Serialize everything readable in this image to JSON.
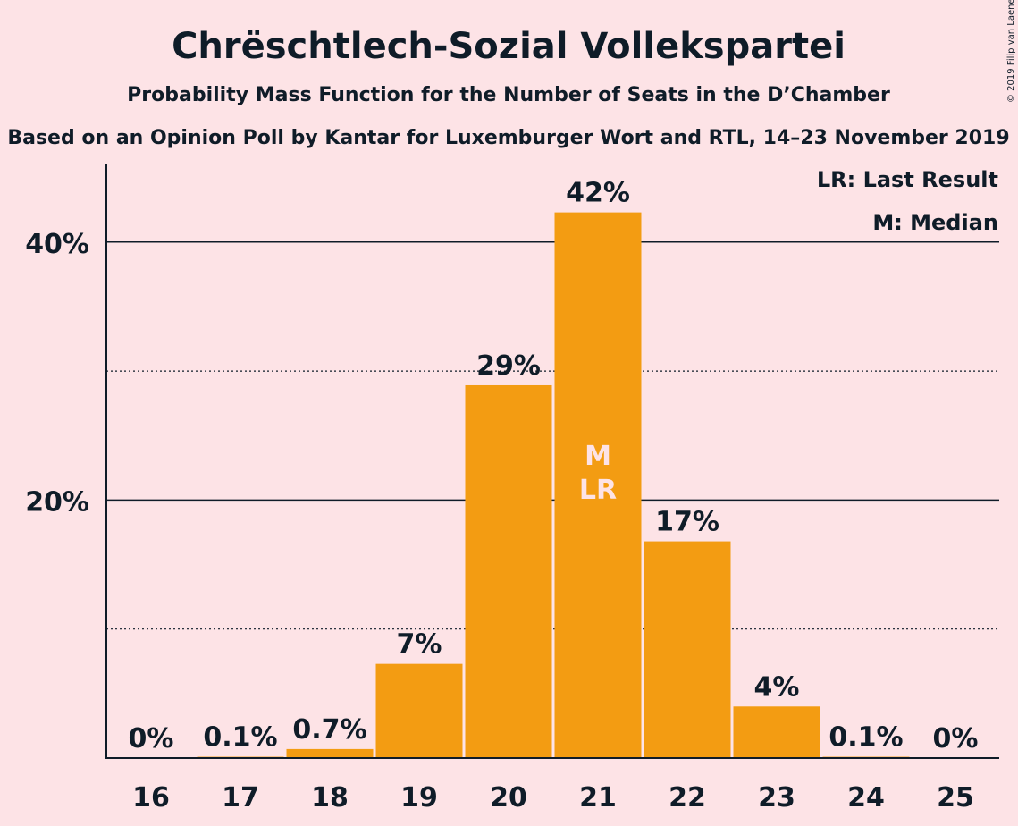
{
  "title": "Chrëschtlech-Sozial Vollekspartei",
  "subtitle": "Probability Mass Function for the Number of Seats in the D’Chamber",
  "source": "Based on an Opinion Poll by Kantar for Luxemburger Wort and RTL, 14–23 November 2019",
  "copyright": "© 2019 Filip van Laenen",
  "legend": {
    "lr": "LR: Last Result",
    "m": "M: Median"
  },
  "colors": {
    "background": "#fde3e6",
    "bar": "#f39c12",
    "text": "#0f1c28"
  },
  "chart_data": {
    "type": "bar",
    "categories": [
      "16",
      "17",
      "18",
      "19",
      "20",
      "21",
      "22",
      "23",
      "24",
      "25"
    ],
    "values": [
      0,
      0.1,
      0.7,
      7.3,
      28.9,
      42.3,
      16.8,
      4.0,
      0.1,
      0
    ],
    "labels": [
      "0%",
      "0.1%",
      "0.7%",
      "7%",
      "29%",
      "42%",
      "17%",
      "4%",
      "0.1%",
      "0%"
    ],
    "y_ticks": [
      {
        "value": 20,
        "label": "20%"
      },
      {
        "value": 40,
        "label": "40%"
      }
    ],
    "minor_gridlines": [
      10,
      30
    ],
    "ylim": [
      0,
      46
    ],
    "median_category": "21",
    "last_result_category": "21",
    "median_marker": "M",
    "last_result_marker": "LR"
  }
}
